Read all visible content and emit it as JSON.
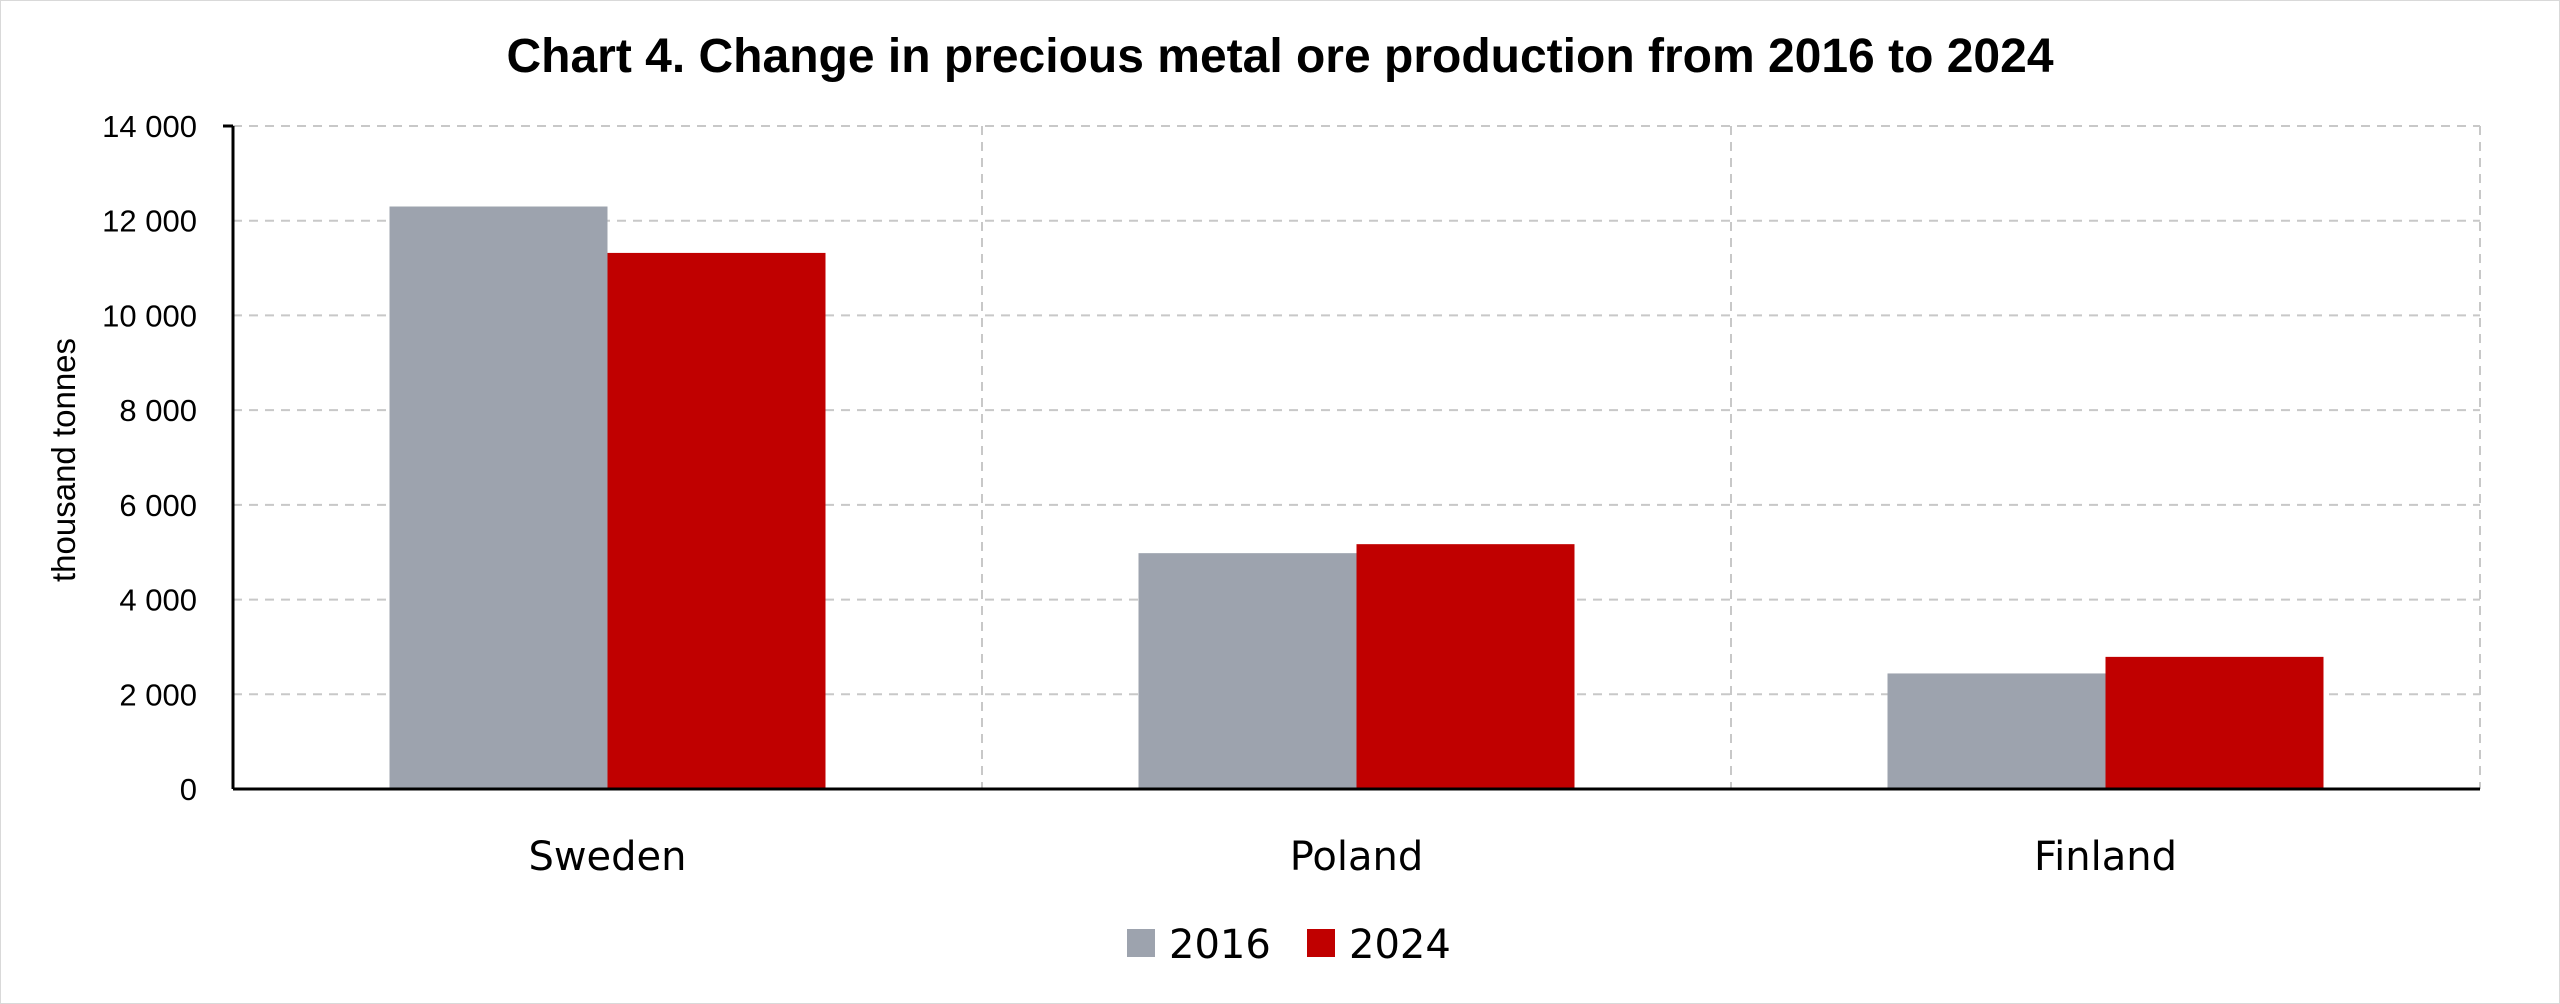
{
  "chart_data": {
    "type": "bar",
    "title": "Chart 4. Change in precious metal ore production from 2016 to 2024",
    "xlabel": "",
    "ylabel": "thousand tonnes",
    "categories": [
      "Sweden",
      "Poland",
      "Finland"
    ],
    "series": [
      {
        "name": "2016",
        "color": "#9da3ae",
        "values": [
          12300,
          4980,
          2440
        ]
      },
      {
        "name": "2024",
        "color": "#c00000",
        "values": [
          11320,
          5170,
          2790
        ]
      }
    ],
    "ylim": [
      0,
      14000
    ],
    "yticks": [
      0,
      2000,
      4000,
      6000,
      8000,
      10000,
      12000,
      14000
    ],
    "ytick_labels": [
      "0",
      "2 000",
      "4 000",
      "6 000",
      "8 000",
      "10 000",
      "12 000",
      "14 000"
    ],
    "grid": true,
    "legend_position": "bottom"
  }
}
